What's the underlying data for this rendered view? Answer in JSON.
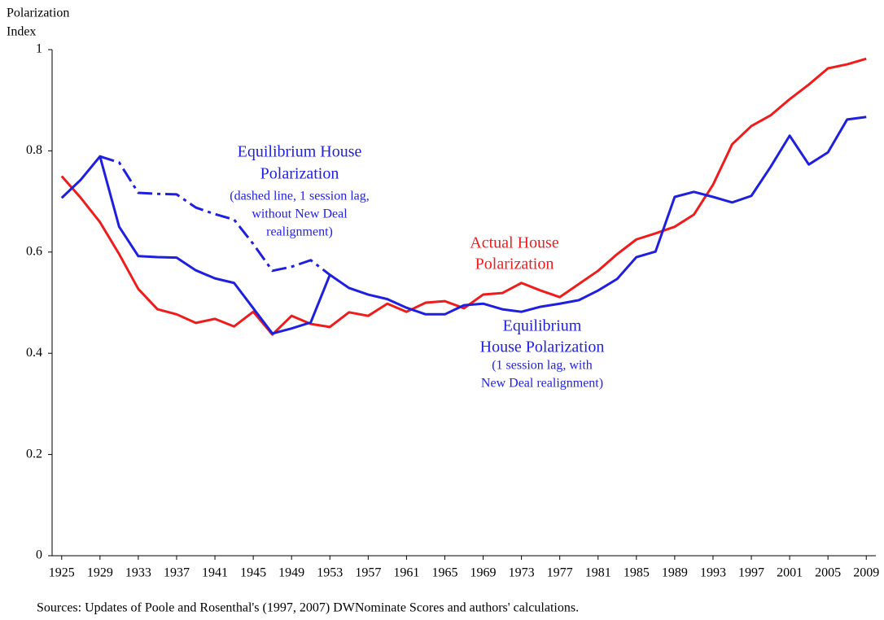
{
  "chart_data": {
    "type": "line",
    "y_label_lines": [
      "Polarization",
      "Index"
    ],
    "x": [
      1925,
      1927,
      1929,
      1931,
      1933,
      1935,
      1937,
      1939,
      1941,
      1943,
      1945,
      1947,
      1949,
      1951,
      1953,
      1955,
      1957,
      1959,
      1961,
      1963,
      1965,
      1967,
      1969,
      1971,
      1973,
      1975,
      1977,
      1979,
      1981,
      1983,
      1985,
      1987,
      1989,
      1991,
      1993,
      1995,
      1997,
      1999,
      2001,
      2003,
      2005,
      2007,
      2009
    ],
    "series": [
      {
        "name": "Actual House Polarization",
        "color": "#ee1c1c",
        "dash": false,
        "values": [
          0.75,
          0.707,
          0.659,
          0.596,
          0.527,
          0.487,
          0.477,
          0.46,
          0.468,
          0.453,
          0.482,
          0.437,
          0.474,
          0.458,
          0.452,
          0.481,
          0.474,
          0.498,
          0.482,
          0.5,
          0.503,
          0.489,
          0.516,
          0.519,
          0.539,
          0.524,
          0.511,
          0.537,
          0.563,
          0.596,
          0.625,
          0.637,
          0.65,
          0.674,
          0.733,
          0.813,
          0.849,
          0.87,
          0.902,
          0.931,
          0.963,
          0.971,
          0.982
        ]
      },
      {
        "name": "Equilibrium House Polarization (1 session lag, with New Deal realignment)",
        "color": "#1f1fe0",
        "dash": false,
        "values": [
          0.707,
          0.743,
          0.789,
          0.65,
          0.592,
          0.59,
          0.589,
          0.564,
          0.548,
          0.539,
          0.489,
          0.439,
          0.449,
          0.461,
          0.555,
          0.529,
          0.516,
          0.507,
          0.49,
          0.477,
          0.477,
          0.495,
          0.498,
          0.487,
          0.482,
          0.492,
          0.498,
          0.505,
          0.524,
          0.547,
          0.59,
          0.601,
          0.709,
          0.719,
          0.709,
          0.698,
          0.711,
          0.768,
          0.83,
          0.773,
          0.797,
          0.862,
          0.867
        ]
      },
      {
        "name": "Equilibrium House Polarization (dashed line, 1 session lag, without New Deal realignment)",
        "color": "#1f1fe0",
        "dash": true,
        "values": [
          null,
          null,
          0.789,
          0.777,
          0.717,
          0.715,
          0.714,
          0.688,
          0.675,
          0.664,
          0.616,
          0.563,
          0.571,
          0.584,
          0.555,
          null,
          null,
          null,
          null,
          null,
          null,
          null,
          null,
          null,
          null,
          null,
          null,
          null,
          null,
          null,
          null,
          null,
          null,
          null,
          null,
          null,
          null,
          null,
          null,
          null,
          null,
          null,
          null
        ]
      }
    ],
    "annotations": [
      {
        "color": "#1f1fe0",
        "lines": [
          "Equilibrium House",
          "Polarization",
          "(dashed line, 1 session lag,",
          "without New Deal",
          "realignment)"
        ]
      },
      {
        "color": "#ee1c1c",
        "lines": [
          "Actual House",
          "Polarization"
        ]
      },
      {
        "color": "#1f1fe0",
        "lines": [
          "Equilibrium",
          "House Polarization",
          "(1 session lag, with",
          "New Deal realignment)"
        ]
      }
    ],
    "source": "Sources: Updates of Poole and Rosenthal's (1997, 2007) DWNominate Scores and authors' calculations.",
    "xlim": [
      1924,
      2010
    ],
    "xticks": [
      1925,
      1929,
      1933,
      1937,
      1941,
      1945,
      1949,
      1953,
      1957,
      1961,
      1965,
      1969,
      1973,
      1977,
      1981,
      1985,
      1989,
      1993,
      1997,
      2001,
      2005,
      2009
    ],
    "ylim": [
      0,
      1
    ],
    "yticks": [
      0,
      0.2,
      0.4,
      0.6,
      0.8,
      1
    ],
    "grid": false
  }
}
